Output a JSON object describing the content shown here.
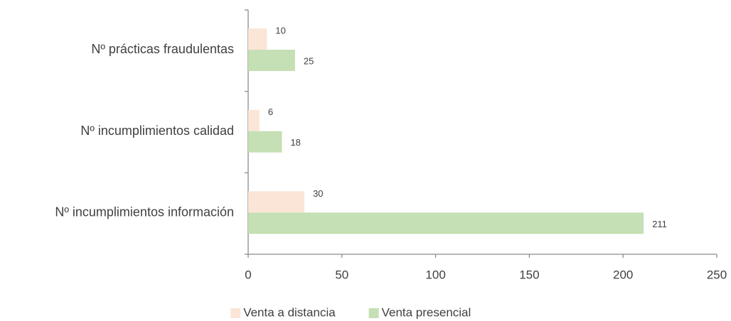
{
  "chart_data": {
    "type": "hbar",
    "categories": [
      "Nº prácticas fraudulentas",
      "Nº incumplimientos calidad",
      "Nº incumplimientos información"
    ],
    "series": [
      {
        "name": "Venta a distancia",
        "color": "#fbe5d6",
        "values": [
          10,
          6,
          30
        ]
      },
      {
        "name": "Venta presencial",
        "color": "#c5e0b4",
        "values": [
          25,
          18,
          211
        ]
      }
    ],
    "xlim": [
      0,
      250
    ],
    "xticks": [
      0,
      50,
      100,
      150,
      200,
      250
    ],
    "legend": "bottom"
  }
}
